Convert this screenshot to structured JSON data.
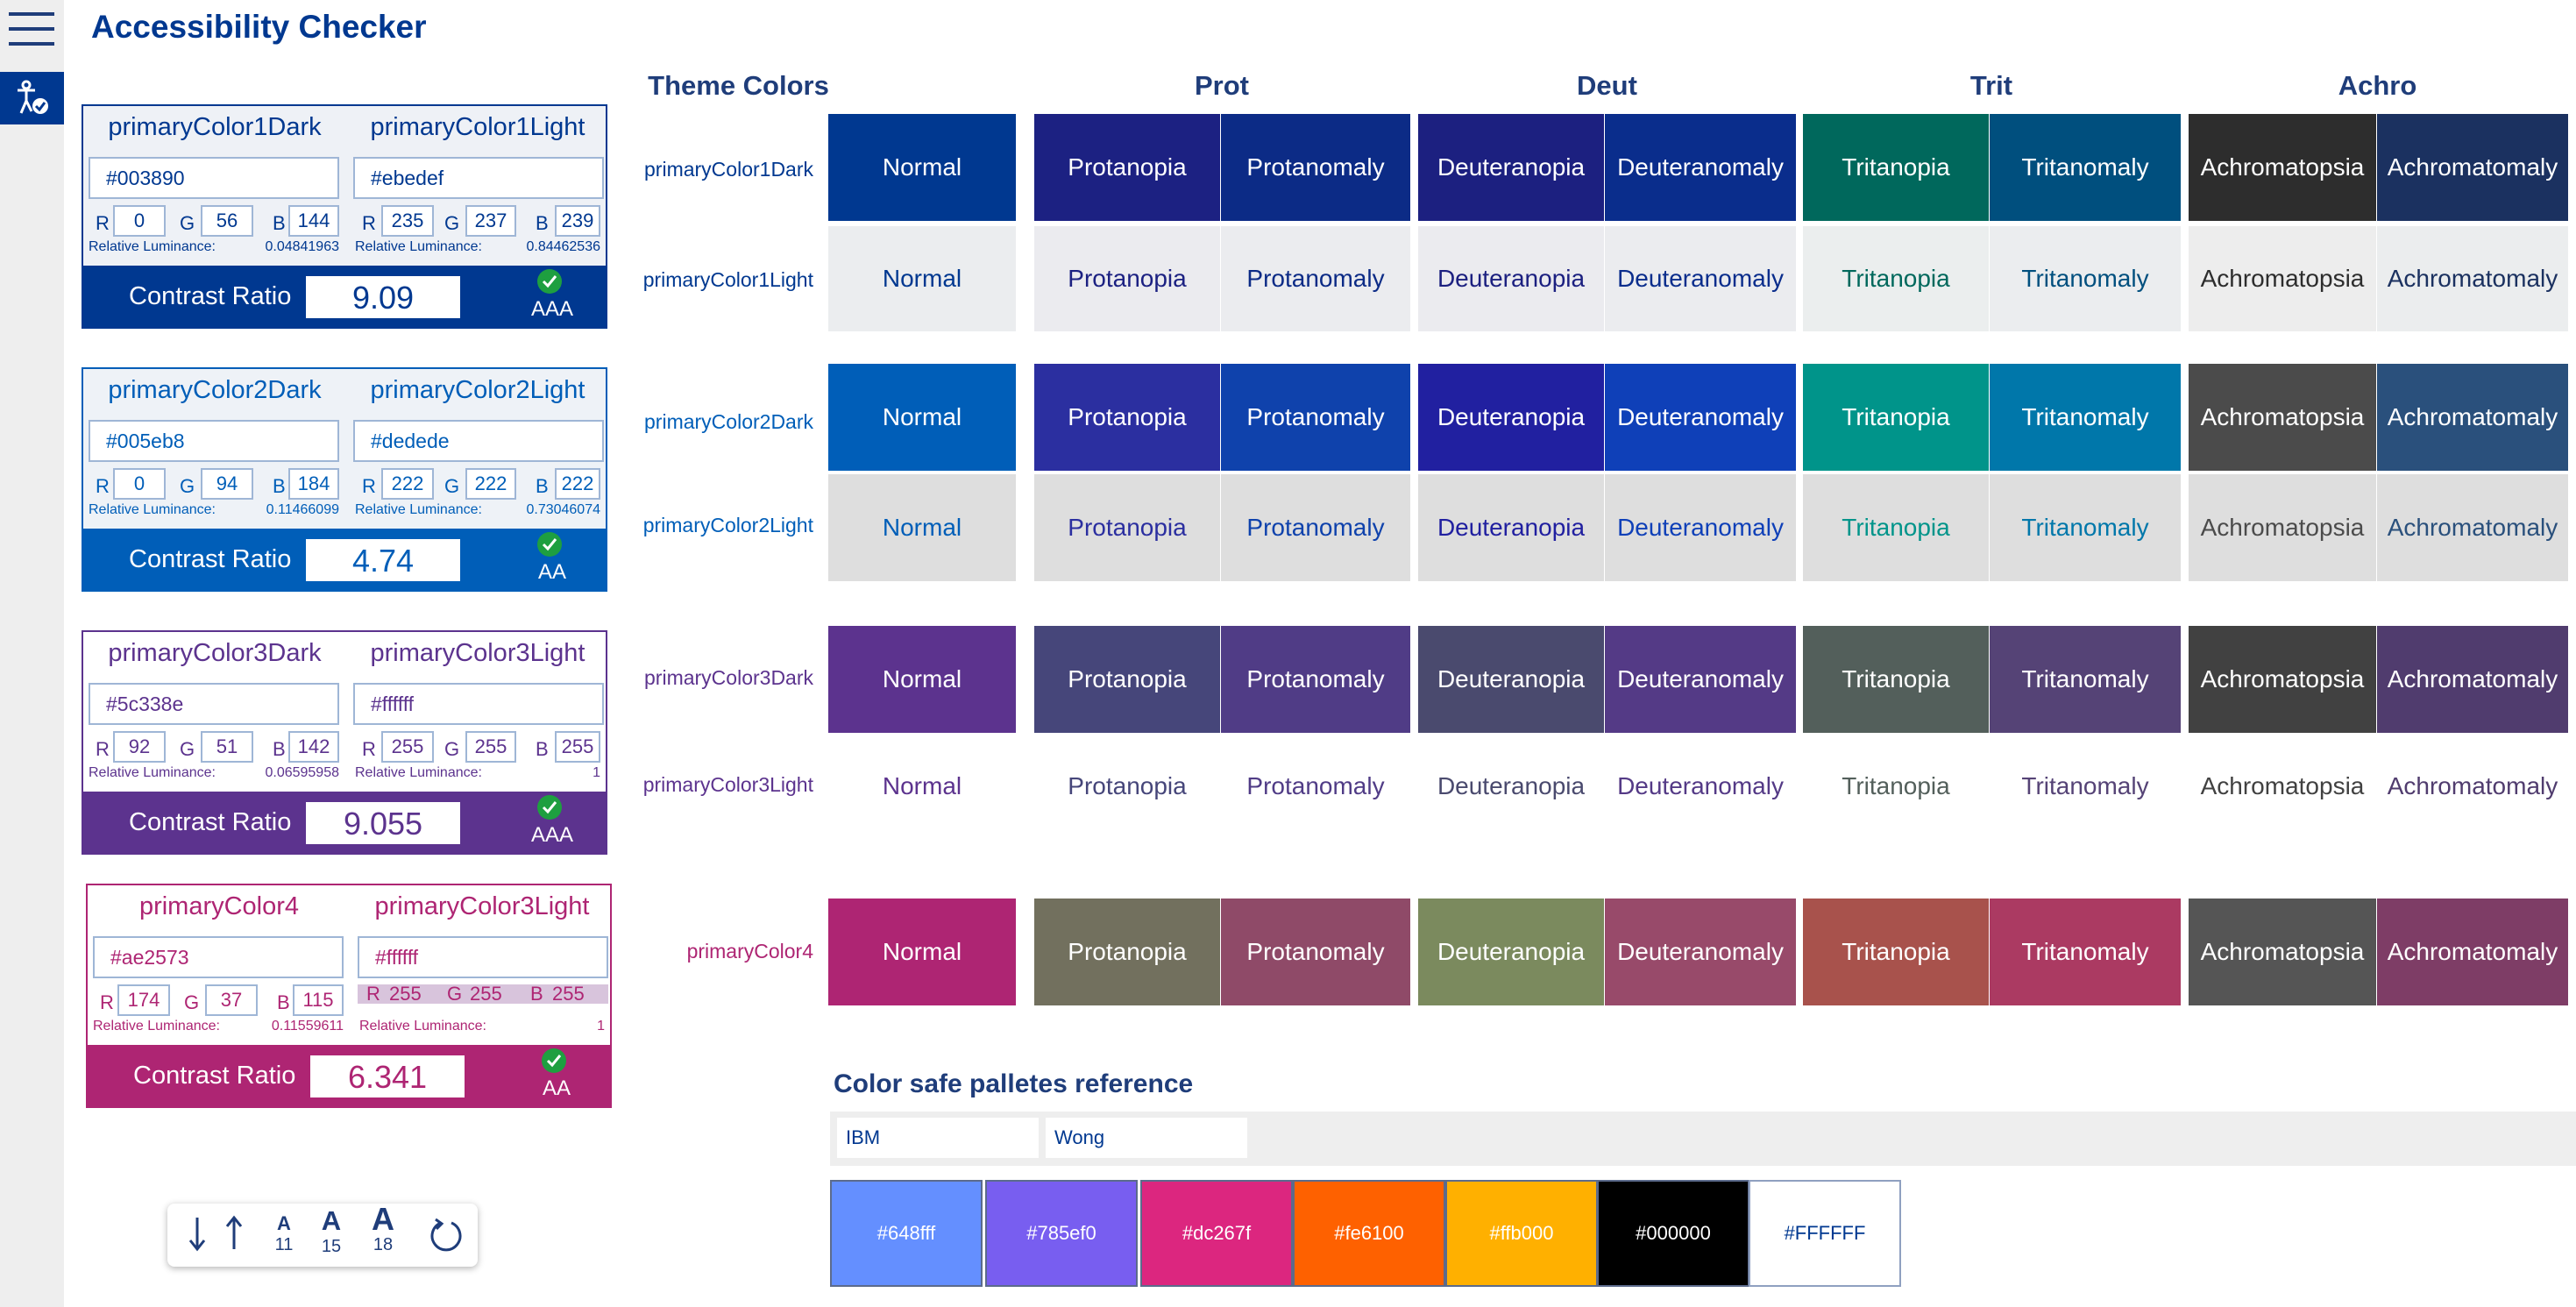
{
  "app": {
    "title": "Accessibility Checker"
  },
  "cards": [
    {
      "dark_name": "primaryColor1Dark",
      "light_name": "primaryColor1Light",
      "dark_hex": "#003890",
      "light_hex": "#ebedef",
      "dark_rgb": {
        "r": "0",
        "g": "56",
        "b": "144"
      },
      "light_rgb": {
        "r": "235",
        "g": "237",
        "b": "239"
      },
      "dark_lum": "0.04841963",
      "light_lum": "0.84462536",
      "lum_label": "Relative Luminance:",
      "ratio_label": "Contrast Ratio",
      "ratio": "9.09",
      "level": "AAA",
      "color": "#003890"
    },
    {
      "dark_name": "primaryColor2Dark",
      "light_name": "primaryColor2Light",
      "dark_hex": "#005eb8",
      "light_hex": "#dedede",
      "dark_rgb": {
        "r": "0",
        "g": "94",
        "b": "184"
      },
      "light_rgb": {
        "r": "222",
        "g": "222",
        "b": "222"
      },
      "dark_lum": "0.11466099",
      "light_lum": "0.73046074",
      "lum_label": "Relative Luminance:",
      "ratio_label": "Contrast Ratio",
      "ratio": "4.74",
      "level": "AA",
      "color": "#005eb8"
    },
    {
      "dark_name": "primaryColor3Dark",
      "light_name": "primaryColor3Light",
      "dark_hex": "#5c338e",
      "light_hex": "#ffffff",
      "dark_rgb": {
        "r": "92",
        "g": "51",
        "b": "142"
      },
      "light_rgb": {
        "r": "255",
        "g": "255",
        "b": "255"
      },
      "dark_lum": "0.06595958",
      "light_lum": "1",
      "lum_label": "Relative Luminance:",
      "ratio_label": "Contrast Ratio",
      "ratio": "9.055",
      "level": "AAA",
      "color": "#5c338e"
    },
    {
      "dark_name": "primaryColor4",
      "light_name": "primaryColor3Light",
      "dark_hex": "#ae2573",
      "light_hex": "#ffffff",
      "dark_rgb": {
        "r": "174",
        "g": "37",
        "b": "115"
      },
      "light_rgb": {
        "r": "255",
        "g": "255",
        "b": "255"
      },
      "dark_lum": "0.11559611",
      "light_lum": "1",
      "lum_label": "Relative Luminance:",
      "ratio_label": "Contrast Ratio",
      "ratio": "6.341",
      "level": "AA",
      "color": "#ae2573"
    }
  ],
  "matrix": {
    "theme_header": "Theme Colors",
    "headers": [
      "Prot",
      "Deut",
      "Trit",
      "Achro"
    ],
    "rows": [
      {
        "label": "primaryColor1Dark",
        "label_color": "#003890",
        "text_color": "#ffffff",
        "cells": [
          {
            "text": "Normal",
            "bg": "#003890"
          },
          {
            "text": "Protanopia",
            "bg": "#1c2182"
          },
          {
            "text": "Protanomaly",
            "bg": "#0c2b86"
          },
          {
            "text": "Deuteranopia",
            "bg": "#1c2080"
          },
          {
            "text": "Deuteranomaly",
            "bg": "#0a2d8c"
          },
          {
            "text": "Tritanopia",
            "bg": "#00685c"
          },
          {
            "text": "Tritanomaly",
            "bg": "#004f7e"
          },
          {
            "text": "Achromatopsia",
            "bg": "#2d2d2d"
          },
          {
            "text": "Achromatomaly",
            "bg": "#1b3160"
          }
        ]
      },
      {
        "label": "primaryColor1Light",
        "label_color": "#003890",
        "text_color": "#003890",
        "cells": [
          {
            "text": "Normal",
            "bg": "#ebedef",
            "fg": "#003890"
          },
          {
            "text": "Protanopia",
            "bg": "#ebebef",
            "fg": "#1c2182"
          },
          {
            "text": "Protanomaly",
            "bg": "#ebecef",
            "fg": "#0c2b86"
          },
          {
            "text": "Deuteranopia",
            "bg": "#ebebef",
            "fg": "#1c2080"
          },
          {
            "text": "Deuteranomaly",
            "bg": "#ebecef",
            "fg": "#0a2d8c"
          },
          {
            "text": "Tritanopia",
            "bg": "#ebeeee",
            "fg": "#00685c"
          },
          {
            "text": "Tritanomaly",
            "bg": "#ebedef",
            "fg": "#004f7e"
          },
          {
            "text": "Achromatopsia",
            "bg": "#ededed",
            "fg": "#2d2d2d"
          },
          {
            "text": "Achromatomaly",
            "bg": "#ebedee",
            "fg": "#1b3160"
          }
        ]
      },
      {
        "label": "primaryColor2Dark",
        "label_color": "#005eb8",
        "text_color": "#ffffff",
        "cells": [
          {
            "text": "Normal",
            "bg": "#005eb8"
          },
          {
            "text": "Protanopia",
            "bg": "#2b2fa0"
          },
          {
            "text": "Protanomaly",
            "bg": "#0f42ac"
          },
          {
            "text": "Deuteranopia",
            "bg": "#2120a0"
          },
          {
            "text": "Deuteranomaly",
            "bg": "#0f40b8"
          },
          {
            "text": "Tritanopia",
            "bg": "#00948a"
          },
          {
            "text": "Tritanomaly",
            "bg": "#0077aa"
          },
          {
            "text": "Achromatopsia",
            "bg": "#4b4b4b"
          },
          {
            "text": "Achromatomaly",
            "bg": "#2a507c"
          }
        ]
      },
      {
        "label": "primaryColor2Light",
        "label_color": "#005eb8",
        "text_color": "#005eb8",
        "cells": [
          {
            "text": "Normal",
            "bg": "#dedede",
            "fg": "#005eb8"
          },
          {
            "text": "Protanopia",
            "bg": "#dedede",
            "fg": "#2b2fa0"
          },
          {
            "text": "Protanomaly",
            "bg": "#dedede",
            "fg": "#0f42ac"
          },
          {
            "text": "Deuteranopia",
            "bg": "#dedede",
            "fg": "#2120a0"
          },
          {
            "text": "Deuteranomaly",
            "bg": "#dedede",
            "fg": "#0f40b8"
          },
          {
            "text": "Tritanopia",
            "bg": "#dedede",
            "fg": "#00948a"
          },
          {
            "text": "Tritanomaly",
            "bg": "#dedede",
            "fg": "#0077aa"
          },
          {
            "text": "Achromatopsia",
            "bg": "#dedede",
            "fg": "#4b4b4b"
          },
          {
            "text": "Achromatomaly",
            "bg": "#dedede",
            "fg": "#2a507c"
          }
        ]
      },
      {
        "label": "primaryColor3Dark",
        "label_color": "#5c338e",
        "text_color": "#ffffff",
        "cells": [
          {
            "text": "Normal",
            "bg": "#5c338e"
          },
          {
            "text": "Protanopia",
            "bg": "#46467a"
          },
          {
            "text": "Protanomaly",
            "bg": "#503c86"
          },
          {
            "text": "Deuteranopia",
            "bg": "#4a4a6e"
          },
          {
            "text": "Deuteranomaly",
            "bg": "#543a86"
          },
          {
            "text": "Tritanopia",
            "bg": "#535f5b"
          },
          {
            "text": "Tritanomaly",
            "bg": "#554376"
          },
          {
            "text": "Achromatopsia",
            "bg": "#414141"
          },
          {
            "text": "Achromatomaly",
            "bg": "#503c6e"
          }
        ]
      },
      {
        "label": "primaryColor3Light",
        "label_color": "#5c338e",
        "text_color": "#5c338e",
        "cells": [
          {
            "text": "Normal",
            "bg": "#ffffff",
            "fg": "#5c338e"
          },
          {
            "text": "Protanopia",
            "bg": "#ffffff",
            "fg": "#46467a"
          },
          {
            "text": "Protanomaly",
            "bg": "#ffffff",
            "fg": "#503c86"
          },
          {
            "text": "Deuteranopia",
            "bg": "#ffffff",
            "fg": "#4a4a6e"
          },
          {
            "text": "Deuteranomaly",
            "bg": "#ffffff",
            "fg": "#543a86"
          },
          {
            "text": "Tritanopia",
            "bg": "#ffffff",
            "fg": "#535f5b"
          },
          {
            "text": "Tritanomaly",
            "bg": "#ffffff",
            "fg": "#554376"
          },
          {
            "text": "Achromatopsia",
            "bg": "#ffffff",
            "fg": "#414141"
          },
          {
            "text": "Achromatomaly",
            "bg": "#ffffff",
            "fg": "#503c6e"
          }
        ]
      },
      {
        "label": "primaryColor4",
        "label_color": "#ae2573",
        "text_color": "#ffffff",
        "cells": [
          {
            "text": "Normal",
            "bg": "#ae2573"
          },
          {
            "text": "Protanopia",
            "bg": "#72705e"
          },
          {
            "text": "Protanomaly",
            "bg": "#8f4a68"
          },
          {
            "text": "Deuteranopia",
            "bg": "#7b8a5e"
          },
          {
            "text": "Deuteranomaly",
            "bg": "#984a6a"
          },
          {
            "text": "Tritanopia",
            "bg": "#a8524c"
          },
          {
            "text": "Tritanomaly",
            "bg": "#ab3a62"
          },
          {
            "text": "Achromatopsia",
            "bg": "#555555"
          },
          {
            "text": "Achromatomaly",
            "bg": "#7e3d66"
          }
        ]
      }
    ]
  },
  "palettes": {
    "title": "Color safe palletes reference",
    "tabs": [
      "IBM",
      "Wong"
    ],
    "swatches": [
      {
        "hex": "#648fff",
        "bg": "#648fff",
        "fg": "#ffffff"
      },
      {
        "hex": "#785ef0",
        "bg": "#785ef0",
        "fg": "#ffffff"
      },
      {
        "hex": "#dc267f",
        "bg": "#dc267f",
        "fg": "#ffffff"
      },
      {
        "hex": "#fe6100",
        "bg": "#fe6100",
        "fg": "#ffffff"
      },
      {
        "hex": "#ffb000",
        "bg": "#ffb000",
        "fg": "#ffffff"
      },
      {
        "hex": "#000000",
        "bg": "#000000",
        "fg": "#ffffff"
      },
      {
        "hex": "#FFFFFF",
        "bg": "#ffffff",
        "fg": "#003890"
      }
    ]
  },
  "toolbar": {
    "font_small": "A",
    "font_small_size": "11",
    "font_medium": "A",
    "font_medium_size": "15",
    "font_large": "A",
    "font_large_size": "18"
  }
}
